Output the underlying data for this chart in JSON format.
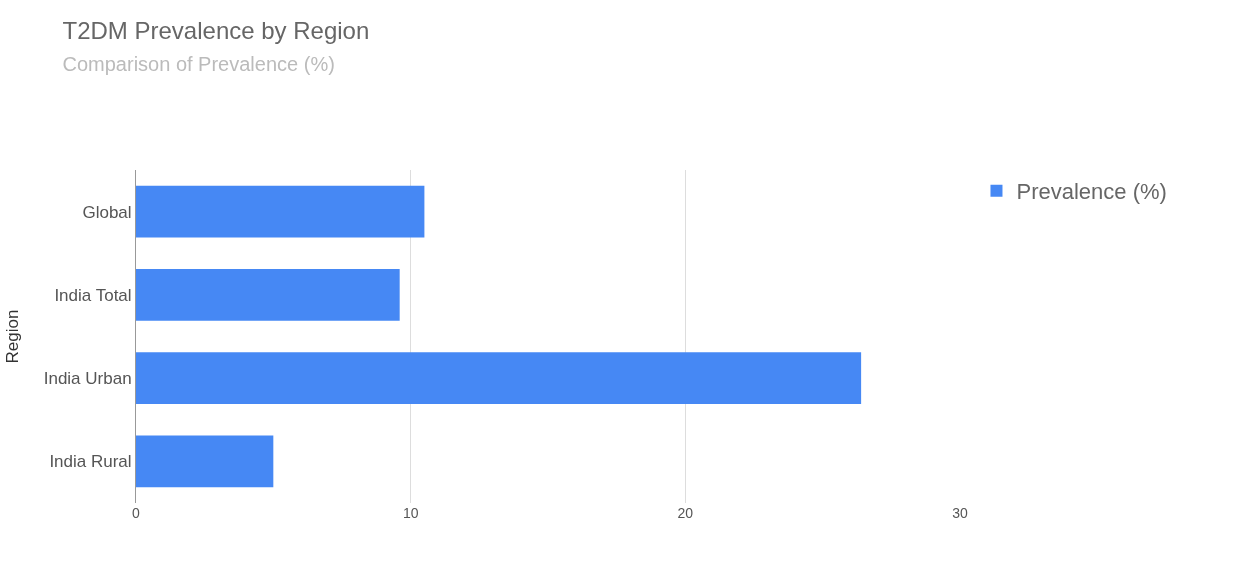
{
  "chart_data": {
    "type": "bar",
    "orientation": "horizontal",
    "title": "T2DM Prevalence by Region",
    "subtitle": "Comparison of Prevalence (%)",
    "ylabel": "Region",
    "categories": [
      "Global",
      "India Total",
      "India Urban",
      "India Rural"
    ],
    "series": [
      {
        "name": "Prevalence (%)",
        "color": "#4688f4",
        "values": [
          10.5,
          9.6,
          26.4,
          5.0
        ]
      }
    ],
    "xlim": [
      0,
      30
    ],
    "xticks": [
      0,
      10,
      20,
      30
    ],
    "grid": "x",
    "legend": "top right"
  }
}
